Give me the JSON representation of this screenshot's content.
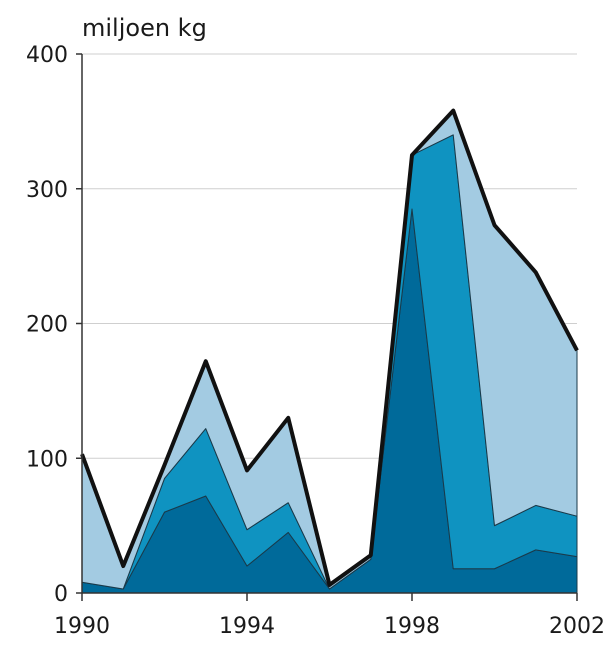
{
  "chart_data": {
    "type": "area",
    "stacked": true,
    "ylabel": "miljoen kg",
    "x": [
      1990,
      1991,
      1992,
      1993,
      1994,
      1995,
      1996,
      1997,
      1998,
      1999,
      2000,
      2001,
      2002
    ],
    "xticks": [
      "1990",
      "1994",
      "1998",
      "2002"
    ],
    "yticks": [
      "0",
      "100",
      "200",
      "300",
      "400"
    ],
    "xlim": [
      1990,
      2002
    ],
    "ylim": [
      0,
      400
    ],
    "grid": true,
    "series": [
      {
        "values": [
          8,
          3,
          60,
          72,
          20,
          45,
          3,
          25,
          285,
          18,
          18,
          32,
          27
        ],
        "color": "#006a9a"
      },
      {
        "values": [
          0,
          0,
          25,
          50,
          27,
          22,
          0,
          0,
          40,
          322,
          32,
          33,
          30
        ],
        "color": "#0f93c1"
      },
      {
        "values": [
          95,
          17,
          10,
          50,
          44,
          63,
          3,
          3,
          0,
          18,
          223,
          173,
          123
        ],
        "color": "#a3cbe2"
      }
    ],
    "total": [
      103,
      20,
      95,
      172,
      91,
      130,
      6,
      28,
      325,
      358,
      273,
      238,
      180
    ],
    "total_color": "#111111"
  }
}
